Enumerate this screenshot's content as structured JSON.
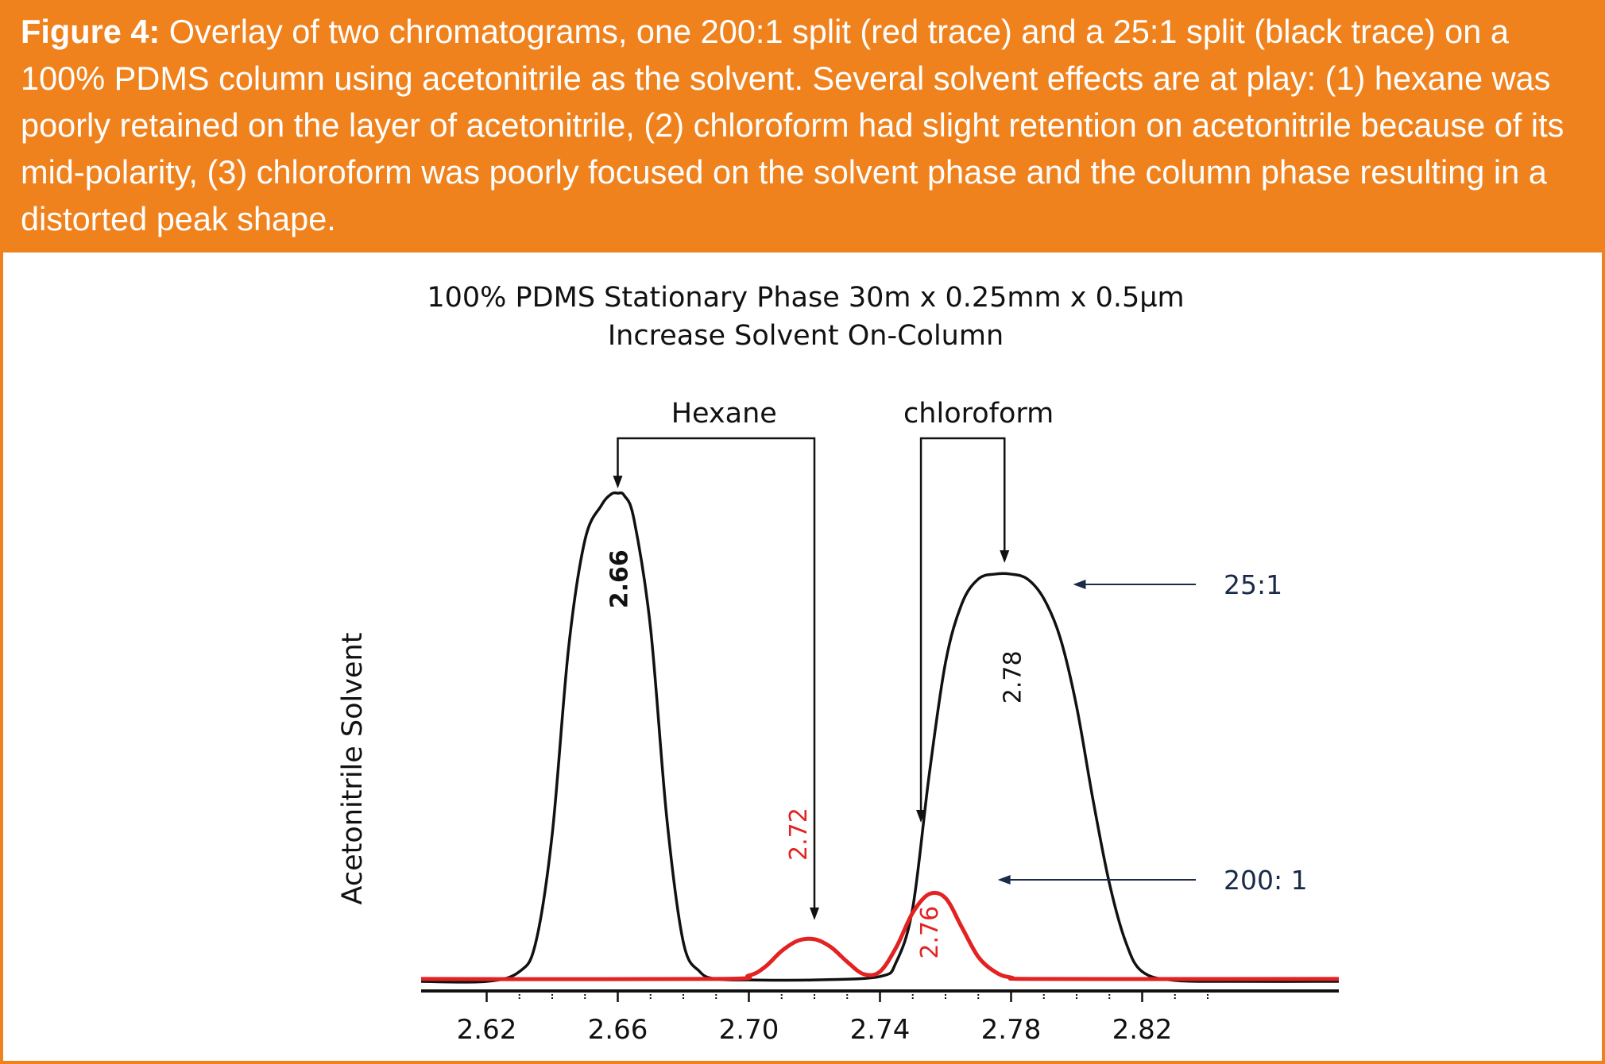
{
  "caption": {
    "figure_label": "Figure 4:",
    "text": " Overlay of two chromatograms, one 200:1 split (red trace) and a 25:1 split (black trace) on a 100% PDMS column using acetonitrile as the solvent. Several solvent effects are at play: (1) hexane was poorly retained on the layer of acetonitrile, (2) chloroform had slight retention on acetonitrile because of its mid-polarity, (3) chloroform was poorly focused on the solvent phase and the column phase resulting in a distorted peak shape."
  },
  "colors": {
    "accent": "#f0821e",
    "red_trace": "#e32222",
    "black_trace": "#111111",
    "arrow": "#1a2a4a"
  },
  "chart_data": {
    "type": "line",
    "title": "100% PDMS Stationary Phase 30m x 0.25mm x 0.5µm",
    "subtitle": "Increase Solvent On-Column",
    "xlabel": "",
    "ylabel": "Acetonitrile Solvent",
    "xlim": [
      2.6,
      2.88
    ],
    "ylim": [
      0,
      1
    ],
    "x_ticks": [
      "2.62",
      "2.66",
      "2.70",
      "2.74",
      "2.78",
      "2.82"
    ],
    "grid": false,
    "series": [
      {
        "name": "25:1",
        "color": "#111111",
        "x": [
          2.6,
          2.62,
          2.63,
          2.635,
          2.64,
          2.645,
          2.65,
          2.655,
          2.658,
          2.66,
          2.662,
          2.665,
          2.67,
          2.675,
          2.68,
          2.685,
          2.69,
          2.7,
          2.72,
          2.74,
          2.745,
          2.75,
          2.755,
          2.76,
          2.765,
          2.77,
          2.775,
          2.78,
          2.785,
          2.79,
          2.795,
          2.8,
          2.805,
          2.81,
          2.815,
          2.82,
          2.83,
          2.85,
          2.88
        ],
        "y": [
          0,
          0,
          0.02,
          0.08,
          0.3,
          0.68,
          0.9,
          0.97,
          0.993,
          0.995,
          0.99,
          0.94,
          0.72,
          0.33,
          0.08,
          0.02,
          0.005,
          0.003,
          0.003,
          0.01,
          0.04,
          0.15,
          0.42,
          0.65,
          0.77,
          0.82,
          0.83,
          0.83,
          0.82,
          0.78,
          0.7,
          0.56,
          0.37,
          0.2,
          0.08,
          0.02,
          0.002,
          0,
          0
        ]
      },
      {
        "name": "200: 1",
        "color": "#e32222",
        "x": [
          2.6,
          2.69,
          2.7,
          2.705,
          2.71,
          2.715,
          2.72,
          2.725,
          2.73,
          2.735,
          2.74,
          2.745,
          2.75,
          2.755,
          2.76,
          2.765,
          2.77,
          2.775,
          2.78,
          2.79,
          2.88
        ],
        "y": [
          0.005,
          0.005,
          0.012,
          0.03,
          0.062,
          0.083,
          0.086,
          0.07,
          0.04,
          0.015,
          0.02,
          0.07,
          0.14,
          0.178,
          0.17,
          0.11,
          0.05,
          0.02,
          0.008,
          0.005,
          0.005
        ]
      }
    ],
    "peak_labels": [
      {
        "text": "2.66",
        "x": 2.66,
        "series": "25:1"
      },
      {
        "text": "2.78",
        "x": 2.78,
        "series": "25:1"
      },
      {
        "text": "2.72",
        "x": 2.72,
        "series": "200: 1"
      },
      {
        "text": "2.76",
        "x": 2.76,
        "series": "200: 1"
      }
    ],
    "annotations": [
      {
        "text": "Hexane"
      },
      {
        "text": "chloroform"
      }
    ]
  }
}
